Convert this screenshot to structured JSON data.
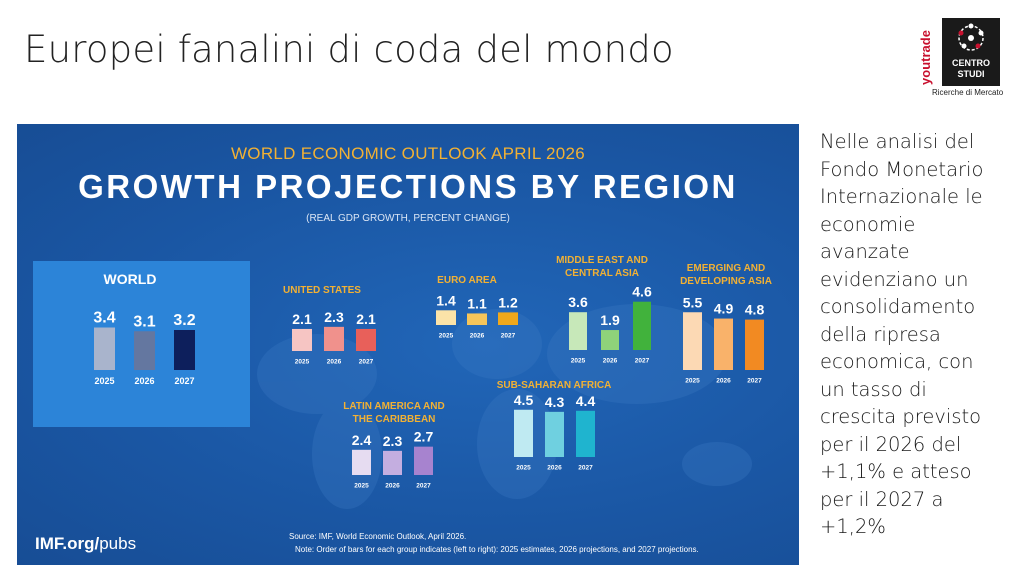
{
  "slide": {
    "title": "Europei fanalini di coda del mondo",
    "side_text": "Nelle analisi del\nFondo Monetario\nInternazionale le\neconomie\navanzate\nevidenziano un\nconsolidamento\ndella ripresa\neconomica, con\nun tasso di\ncrescita previsto\nper il 2026 del\n+1,1% e atteso\nper il 2027 a\n+1,2%"
  },
  "logo": {
    "brand": "youtrade",
    "line1": "CENTRO",
    "line2": "STUDI",
    "tagline": "Ricerche di Mercato"
  },
  "infographic": {
    "header": "WORLD ECONOMIC OUTLOOK APRIL 2026",
    "title": "GROWTH PROJECTIONS BY REGION",
    "subtitle": "(REAL GDP GROWTH, PERCENT CHANGE)",
    "footer_brand": "IMF.org/",
    "footer_brand_suffix": "pubs",
    "source": "Source: IMF, World Economic Outlook, April 2026.",
    "note": "Note: Order of bars for each group indicates (left to right): 2025 estimates, 2026 projections, and 2027 projections.",
    "colors": {
      "background": "#1c5cac",
      "header": "#f2b134",
      "region_title": "#f2b134"
    }
  },
  "chart_data": [
    {
      "type": "bar",
      "title": "WORLD",
      "categories": [
        "2025",
        "2026",
        "2027"
      ],
      "values": [
        3.4,
        3.1,
        3.2
      ],
      "colors": [
        "#a9b4cc",
        "#6477a0",
        "#0d1f5c"
      ]
    },
    {
      "type": "bar",
      "title": "UNITED STATES",
      "categories": [
        "2025",
        "2026",
        "2027"
      ],
      "values": [
        2.1,
        2.3,
        2.1
      ],
      "colors": [
        "#f6c5c3",
        "#f0918c",
        "#e8605a"
      ]
    },
    {
      "type": "bar",
      "title": "EURO AREA",
      "categories": [
        "2025",
        "2026",
        "2027"
      ],
      "values": [
        1.4,
        1.1,
        1.2
      ],
      "colors": [
        "#fbe3a8",
        "#f6c55a",
        "#f0a81c"
      ]
    },
    {
      "type": "bar",
      "title": "MIDDLE EAST AND CENTRAL ASIA",
      "categories": [
        "2025",
        "2026",
        "2027"
      ],
      "values": [
        3.6,
        1.9,
        4.6
      ],
      "colors": [
        "#c7e8b9",
        "#8fd27a",
        "#41b23c"
      ]
    },
    {
      "type": "bar",
      "title": "EMERGING AND DEVELOPING ASIA",
      "categories": [
        "2025",
        "2026",
        "2027"
      ],
      "values": [
        5.5,
        4.9,
        4.8
      ],
      "colors": [
        "#fcd9b4",
        "#f9b26a",
        "#f28a22"
      ]
    },
    {
      "type": "bar",
      "title": "SUB-SAHARAN AFRICA",
      "categories": [
        "2025",
        "2026",
        "2027"
      ],
      "values": [
        4.5,
        4.3,
        4.4
      ],
      "colors": [
        "#bfeaf2",
        "#6fd0e0",
        "#1fb4cf"
      ]
    },
    {
      "type": "bar",
      "title": "LATIN AMERICA AND THE CARIBBEAN",
      "categories": [
        "2025",
        "2026",
        "2027"
      ],
      "values": [
        2.4,
        2.3,
        2.7
      ],
      "colors": [
        "#e6dcf1",
        "#c4aee0",
        "#a783cf"
      ]
    }
  ]
}
